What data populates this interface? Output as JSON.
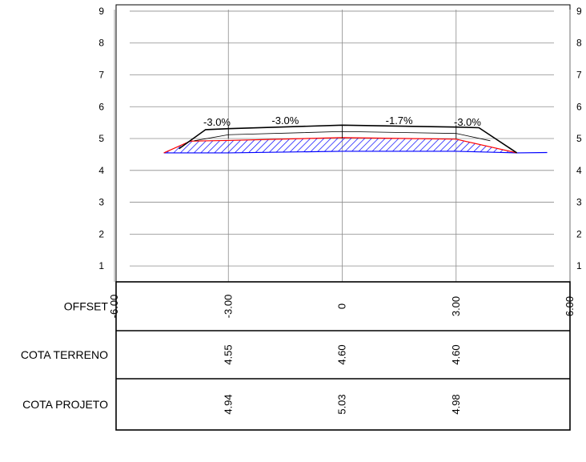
{
  "chart_data": {
    "type": "cross-section",
    "xlim": [
      -6.0,
      6.0
    ],
    "ylim": [
      0.5,
      9.2
    ],
    "y_ticks": [
      "1",
      "2",
      "3",
      "4",
      "5",
      "6",
      "7",
      "8",
      "9"
    ],
    "x_gridlines": [
      -6,
      -3,
      0,
      3,
      6
    ],
    "grid": true,
    "series": [
      {
        "role": "terreno",
        "color": "#0000ff",
        "points": [
          [
            -4.7,
            4.55
          ],
          [
            -3.0,
            4.55
          ],
          [
            0,
            4.6
          ],
          [
            3.0,
            4.6
          ],
          [
            4.6,
            4.55
          ],
          [
            5.4,
            4.56
          ]
        ]
      },
      {
        "role": "projeto",
        "color": "#ff0000",
        "points": [
          [
            -4.7,
            4.55
          ],
          [
            -4.0,
            4.92
          ],
          [
            -3.0,
            4.94
          ],
          [
            0,
            5.03
          ],
          [
            3.0,
            4.98
          ],
          [
            4.6,
            4.55
          ]
        ]
      },
      {
        "role": "pavimento",
        "color": "#000000",
        "points": [
          [
            -4.3,
            4.68
          ],
          [
            -3.6,
            5.28
          ],
          [
            -3.0,
            5.31
          ],
          [
            0,
            5.42
          ],
          [
            3.0,
            5.36
          ],
          [
            3.6,
            5.34
          ],
          [
            4.6,
            4.55
          ]
        ]
      }
    ],
    "slope_labels": [
      {
        "text": "-3.0%",
        "x": -3.3,
        "y": 5.5
      },
      {
        "text": "-3.0%",
        "x": -1.5,
        "y": 5.55
      },
      {
        "text": "-1.7%",
        "x": 1.5,
        "y": 5.55
      },
      {
        "text": "-3.0%",
        "x": 3.3,
        "y": 5.5
      }
    ],
    "table": {
      "columns": [
        "-6.00",
        "-3.00",
        "0",
        "3.00",
        "6.00"
      ],
      "rows": [
        {
          "label": "OFFSET",
          "values": [
            "-6.00",
            "-3.00",
            "0",
            "3.00",
            "6.00"
          ]
        },
        {
          "label": "COTA TERRENO",
          "values": [
            "",
            "4.55",
            "4.60",
            "4.60",
            ""
          ]
        },
        {
          "label": "COTA PROJETO",
          "values": [
            "",
            "4.94",
            "5.03",
            "4.98",
            ""
          ]
        }
      ]
    }
  }
}
